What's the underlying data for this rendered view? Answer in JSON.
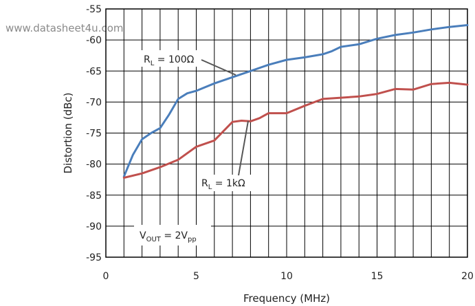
{
  "watermark": "www.datasheet4u.com",
  "chart_data": {
    "type": "line",
    "xlabel": "Frequency (MHz)",
    "ylabel": "Distortion (dBc)",
    "xlim": [
      0,
      20
    ],
    "ylim": [
      -95,
      -55
    ],
    "xticks": [
      0,
      5,
      10,
      15,
      20
    ],
    "yticks": [
      -55,
      -60,
      -65,
      -70,
      -75,
      -80,
      -85,
      -90,
      -95
    ],
    "grid": true,
    "series": [
      {
        "color": "#4a7ebb",
        "label_main": "R",
        "label_sub": "L",
        "label_rest": " = 100Ω",
        "x": [
          1,
          1.5,
          2,
          2.5,
          3,
          3.5,
          4,
          4.5,
          5,
          6,
          7,
          8,
          9,
          10,
          11,
          12,
          12.5,
          13,
          14,
          15,
          16,
          17,
          18,
          19,
          20
        ],
        "y": [
          -82,
          -78.5,
          -76,
          -75,
          -74.2,
          -72,
          -69.5,
          -68.6,
          -68.2,
          -67,
          -66,
          -65,
          -64,
          -63.2,
          -62.8,
          -62.3,
          -61.8,
          -61.1,
          -60.7,
          -59.8,
          -59.2,
          -58.8,
          -58.3,
          -57.9,
          -57.6
        ]
      },
      {
        "color": "#c0504d",
        "label_main": "R",
        "label_sub": "L",
        "label_rest": " = 1kΩ",
        "x": [
          1,
          2,
          3,
          4,
          5,
          6,
          7,
          7.5,
          8,
          8.5,
          9,
          10,
          11,
          12,
          13,
          14,
          15,
          16,
          17,
          18,
          19,
          20
        ],
        "y": [
          -82.2,
          -81.5,
          -80.5,
          -79.3,
          -77.2,
          -76.2,
          -73.2,
          -73,
          -73.1,
          -72.6,
          -71.8,
          -71.8,
          -70.6,
          -69.5,
          -69.3,
          -69.1,
          -68.7,
          -67.9,
          -68,
          -67.1,
          -66.9,
          -67.2
        ]
      }
    ],
    "annotations": [
      {
        "main": "V",
        "sub": "OUT",
        "rest": " = 2V",
        "sub2": "pp"
      }
    ]
  }
}
